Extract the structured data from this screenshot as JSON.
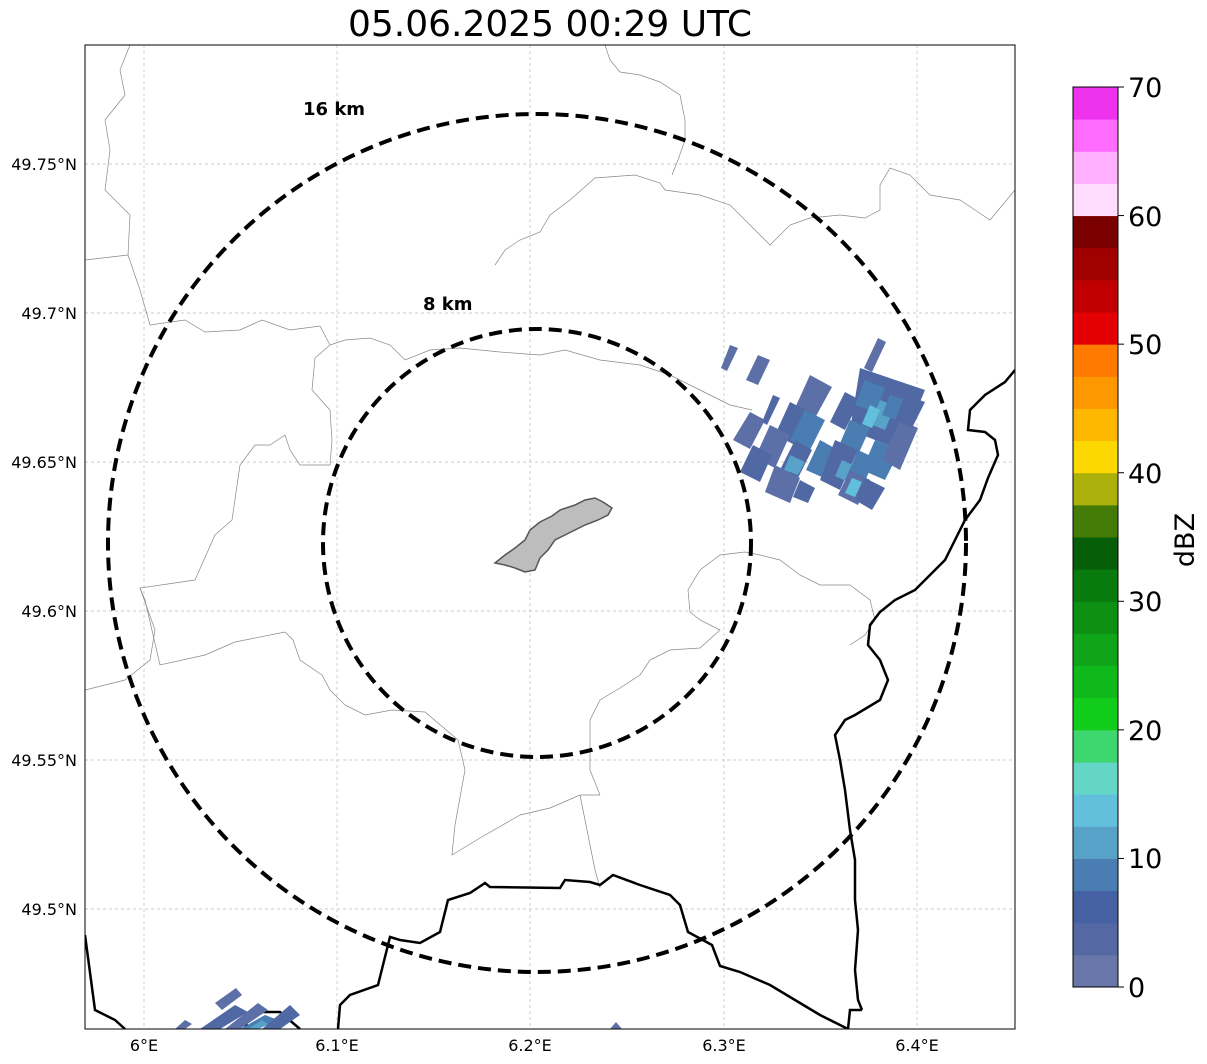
{
  "title": "05.06.2025 00:29 UTC",
  "map": {
    "lon_ticks": [
      "6°E",
      "6.1°E",
      "6.2°E",
      "6.3°E",
      "6.4°E"
    ],
    "lat_ticks": [
      "49.75°N",
      "49.7°N",
      "49.65°N",
      "49.6°N",
      "49.55°N",
      "49.5°N"
    ],
    "range_rings": [
      {
        "label": "8 km"
      },
      {
        "label": "16 km"
      }
    ]
  },
  "colorbar": {
    "label": "dBZ",
    "tick_labels": [
      "0",
      "10",
      "20",
      "30",
      "40",
      "50",
      "60",
      "70"
    ],
    "colors": [
      "#6677a8",
      "#5468a4",
      "#4560a3",
      "#4a7db1",
      "#58a2c9",
      "#63c0dd",
      "#63d6c8",
      "#3ed66e",
      "#12cc1c",
      "#10b91b",
      "#0ea518",
      "#0c8f12",
      "#097a0e",
      "#055f09",
      "#447b07",
      "#abb10a",
      "#fdd800",
      "#ffb800",
      "#ff9800",
      "#ff7a00",
      "#e20000",
      "#c00000",
      "#a00000",
      "#7a0000",
      "#ffdcff",
      "#ffb0ff",
      "#ff6cff",
      "#ee33ee"
    ]
  },
  "icons": {
    "city": "city-outline-shape"
  }
}
